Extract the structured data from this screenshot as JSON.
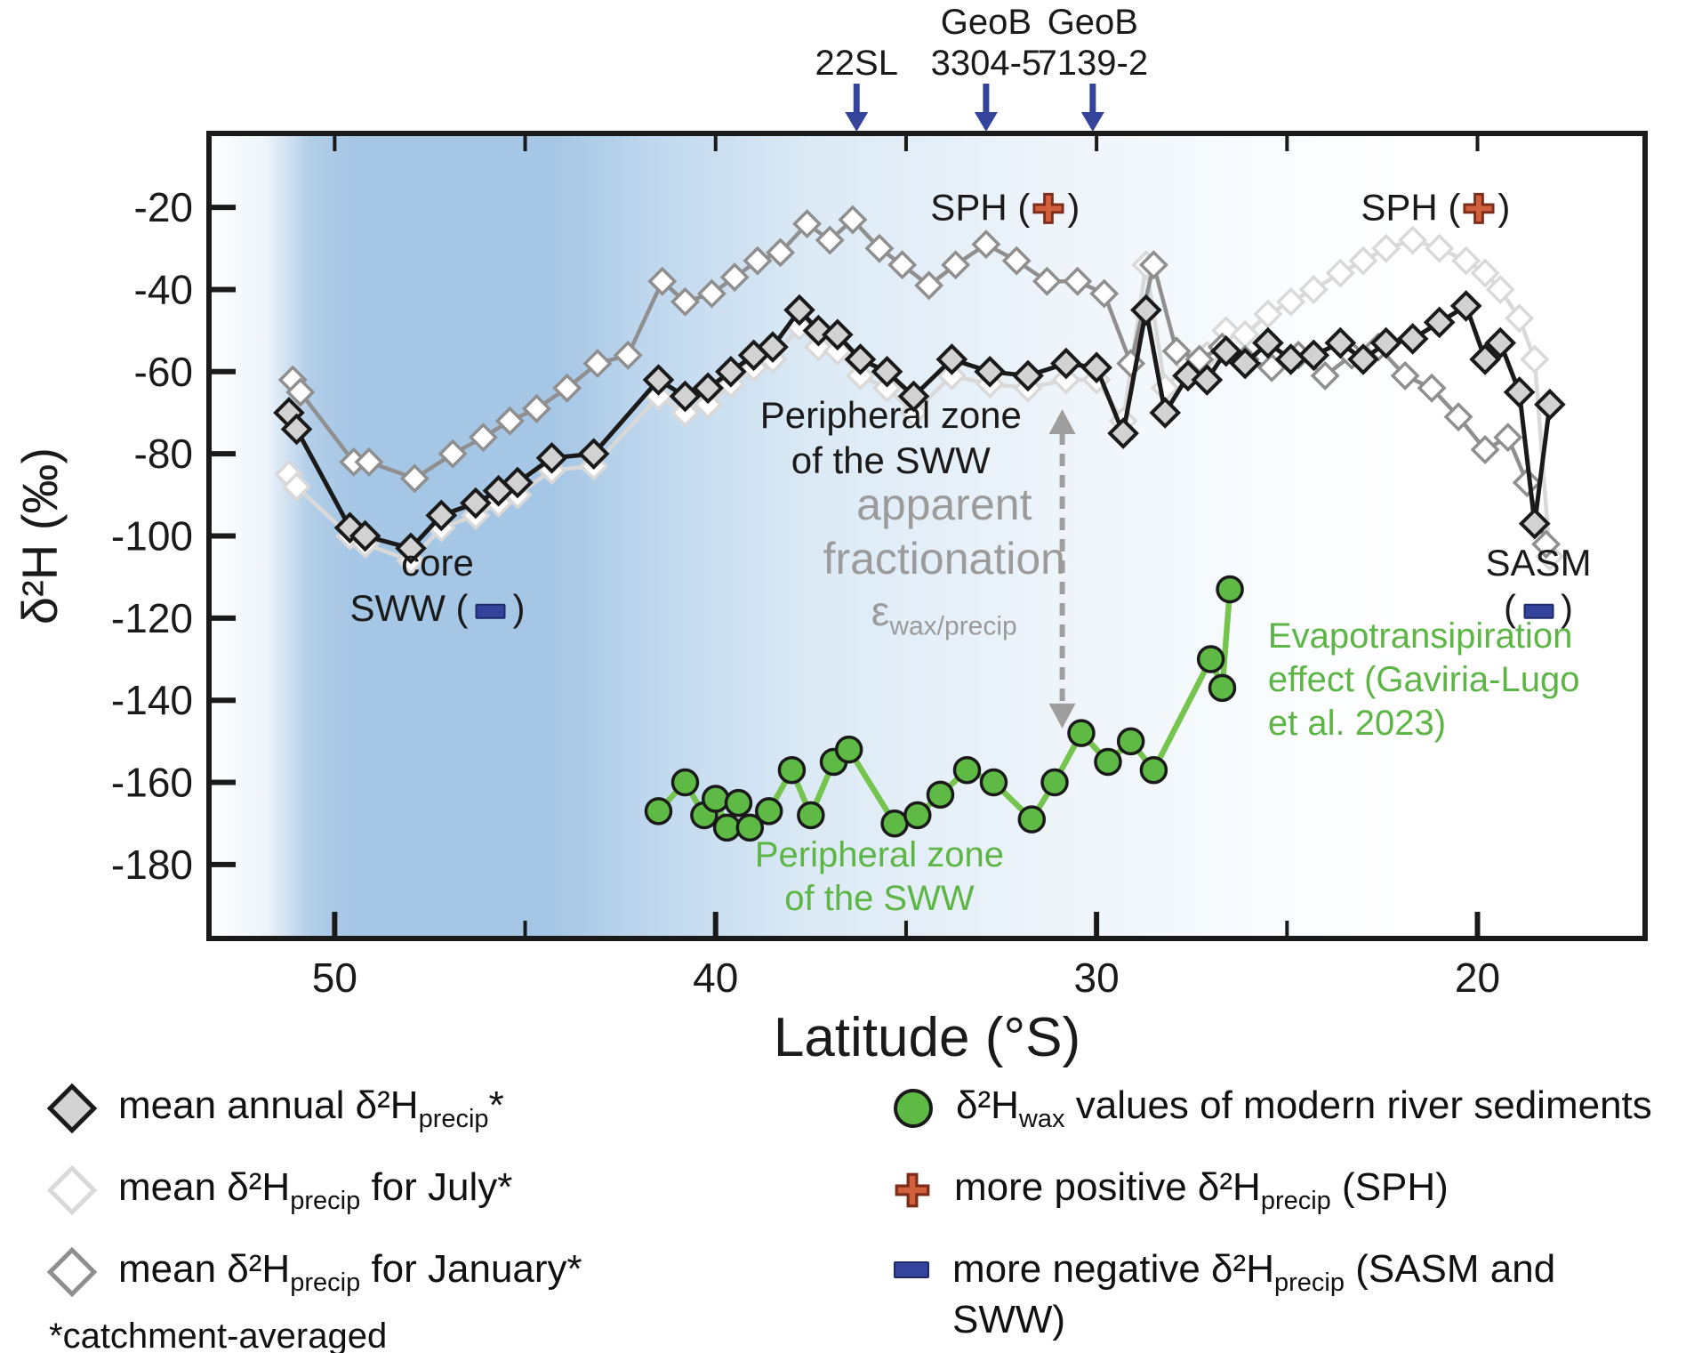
{
  "colors": {
    "annual_line": "#1a1a1a",
    "annual_fill": "#d2d2d2",
    "july_line": "#d9d9d9",
    "july_fill": "#ffffff",
    "january_line": "#8f8f8f",
    "january_fill": "#ffffff",
    "wax_line": "#74c44d",
    "wax_fill": "#5fba45",
    "marker_outline": "#1a1a1a",
    "navy": "#34439b",
    "cross_fill": "#d2603c",
    "cross_stroke": "#7d2d1a",
    "dash_gray": "#9e9e9e",
    "band_blue": "#a5c6e5",
    "axis": "#1a1a1a",
    "gray_text": "#9b9b9b",
    "green_text": "#5cb544"
  },
  "chart_data": {
    "type": "line",
    "x_axis": {
      "label": "Latitude (°S)",
      "ticks": [
        50,
        40,
        30,
        20
      ],
      "minor_ticks": [
        45,
        35,
        25
      ],
      "range": [
        53.3,
        15.6
      ],
      "reversed": true
    },
    "y_axis": {
      "label": "δ²H (‰)",
      "ticks": [
        -20,
        -40,
        -60,
        -80,
        -100,
        -120,
        -140,
        -160,
        -180
      ],
      "range": [
        -198,
        -2
      ],
      "grid": false
    },
    "background_gradient": [
      {
        "offset": "0%",
        "color": "#ffffff"
      },
      {
        "offset": "4%",
        "color": "#edf4fa"
      },
      {
        "offset": "7%",
        "color": "#b2cee8"
      },
      {
        "offset": "10%",
        "color": "#a5c6e5"
      },
      {
        "offset": "24%",
        "color": "#a5c6e5"
      },
      {
        "offset": "31%",
        "color": "#c0d8ee"
      },
      {
        "offset": "42%",
        "color": "#dceaf5"
      },
      {
        "offset": "54%",
        "color": "#e9f1f9"
      },
      {
        "offset": "66%",
        "color": "#f3f8fc"
      },
      {
        "offset": "76%",
        "color": "#fbfdff"
      },
      {
        "offset": "83%",
        "color": "#ffffff"
      },
      {
        "offset": "100%",
        "color": "#ffffff"
      }
    ],
    "series": [
      {
        "id": "july",
        "name": "mean δ²H precip for July (catchment-averaged)",
        "marker": "diamond",
        "points": [
          [
            51.2,
            -85
          ],
          [
            51.0,
            -88
          ],
          [
            49.6,
            -100
          ],
          [
            49.2,
            -102
          ],
          [
            48.0,
            -106
          ],
          [
            47.2,
            -98
          ],
          [
            46.3,
            -95
          ],
          [
            45.7,
            -92
          ],
          [
            45.2,
            -90
          ],
          [
            44.3,
            -84
          ],
          [
            43.2,
            -83
          ],
          [
            41.5,
            -66
          ],
          [
            40.8,
            -70
          ],
          [
            40.2,
            -68
          ],
          [
            39.6,
            -63
          ],
          [
            39.0,
            -59
          ],
          [
            38.5,
            -57
          ],
          [
            37.8,
            -49
          ],
          [
            37.3,
            -54
          ],
          [
            36.8,
            -55
          ],
          [
            36.2,
            -61
          ],
          [
            35.5,
            -64
          ],
          [
            34.8,
            -70
          ],
          [
            33.8,
            -61
          ],
          [
            32.8,
            -63
          ],
          [
            31.8,
            -64
          ],
          [
            30.8,
            -62
          ],
          [
            30.0,
            -62
          ],
          [
            29.3,
            -72
          ],
          [
            28.7,
            -34
          ],
          [
            28.2,
            -64
          ],
          [
            27.6,
            -58
          ],
          [
            27.1,
            -56
          ],
          [
            26.6,
            -50
          ],
          [
            26.1,
            -51
          ],
          [
            25.5,
            -46
          ],
          [
            24.9,
            -43
          ],
          [
            24.3,
            -40
          ],
          [
            23.6,
            -36
          ],
          [
            23.0,
            -33
          ],
          [
            22.4,
            -30
          ],
          [
            21.7,
            -28
          ],
          [
            21.0,
            -30
          ],
          [
            20.3,
            -33
          ],
          [
            19.8,
            -36
          ],
          [
            19.4,
            -40
          ],
          [
            18.9,
            -47
          ],
          [
            18.5,
            -57
          ],
          [
            18.1,
            -105
          ]
        ]
      },
      {
        "id": "january",
        "name": "mean δ²H precip for January (catchment-averaged)",
        "marker": "diamond",
        "points": [
          [
            51.1,
            -62
          ],
          [
            50.9,
            -65
          ],
          [
            49.5,
            -82
          ],
          [
            49.1,
            -82
          ],
          [
            47.9,
            -86
          ],
          [
            46.9,
            -80
          ],
          [
            46.1,
            -76
          ],
          [
            45.4,
            -72
          ],
          [
            44.7,
            -69
          ],
          [
            43.9,
            -64
          ],
          [
            43.1,
            -58
          ],
          [
            42.3,
            -56
          ],
          [
            41.4,
            -38
          ],
          [
            40.8,
            -43
          ],
          [
            40.1,
            -41
          ],
          [
            39.5,
            -37
          ],
          [
            38.9,
            -33
          ],
          [
            38.3,
            -31
          ],
          [
            37.6,
            -24
          ],
          [
            37.0,
            -28
          ],
          [
            36.4,
            -23
          ],
          [
            35.7,
            -30
          ],
          [
            35.1,
            -34
          ],
          [
            34.4,
            -39
          ],
          [
            33.7,
            -34
          ],
          [
            32.9,
            -29
          ],
          [
            32.1,
            -33
          ],
          [
            31.3,
            -38
          ],
          [
            30.5,
            -38
          ],
          [
            29.8,
            -41
          ],
          [
            29.1,
            -58
          ],
          [
            28.5,
            -34
          ],
          [
            27.9,
            -55
          ],
          [
            27.3,
            -57
          ],
          [
            26.7,
            -54
          ],
          [
            26.1,
            -57
          ],
          [
            25.4,
            -59
          ],
          [
            24.7,
            -56
          ],
          [
            24.0,
            -61
          ],
          [
            23.3,
            -56
          ],
          [
            22.6,
            -54
          ],
          [
            21.9,
            -61
          ],
          [
            21.2,
            -64
          ],
          [
            20.5,
            -71
          ],
          [
            19.8,
            -79
          ],
          [
            19.2,
            -76
          ],
          [
            18.7,
            -87
          ],
          [
            18.2,
            -102
          ]
        ]
      },
      {
        "id": "annual",
        "name": "mean annual δ²H precip (catchment-averaged)",
        "marker": "diamond",
        "points": [
          [
            51.2,
            -70
          ],
          [
            51.0,
            -74
          ],
          [
            49.6,
            -98
          ],
          [
            49.2,
            -100
          ],
          [
            48.0,
            -103
          ],
          [
            47.2,
            -95
          ],
          [
            46.3,
            -92
          ],
          [
            45.7,
            -89
          ],
          [
            45.2,
            -87
          ],
          [
            44.3,
            -81
          ],
          [
            43.2,
            -80
          ],
          [
            41.5,
            -62
          ],
          [
            40.8,
            -66
          ],
          [
            40.2,
            -64
          ],
          [
            39.6,
            -60
          ],
          [
            39.0,
            -56
          ],
          [
            38.5,
            -54
          ],
          [
            37.8,
            -45
          ],
          [
            37.3,
            -50
          ],
          [
            36.8,
            -51
          ],
          [
            36.2,
            -57
          ],
          [
            35.5,
            -60
          ],
          [
            34.8,
            -66
          ],
          [
            33.8,
            -57
          ],
          [
            32.8,
            -60
          ],
          [
            31.8,
            -61
          ],
          [
            30.8,
            -58
          ],
          [
            30.0,
            -59
          ],
          [
            29.3,
            -75
          ],
          [
            28.7,
            -45
          ],
          [
            28.2,
            -70
          ],
          [
            27.6,
            -61
          ],
          [
            27.1,
            -62
          ],
          [
            26.6,
            -55
          ],
          [
            26.1,
            -58
          ],
          [
            25.5,
            -53
          ],
          [
            24.9,
            -57
          ],
          [
            24.3,
            -56
          ],
          [
            23.6,
            -53
          ],
          [
            23.0,
            -57
          ],
          [
            22.4,
            -53
          ],
          [
            21.7,
            -52
          ],
          [
            21.0,
            -48
          ],
          [
            20.3,
            -44
          ],
          [
            19.8,
            -57
          ],
          [
            19.4,
            -53
          ],
          [
            18.9,
            -65
          ],
          [
            18.5,
            -97
          ],
          [
            18.1,
            -68
          ]
        ]
      },
      {
        "id": "wax",
        "name": "δ²H wax values of modern river sediments",
        "marker": "circle",
        "points": [
          [
            41.5,
            -167
          ],
          [
            40.8,
            -160
          ],
          [
            40.3,
            -168
          ],
          [
            40.0,
            -164
          ],
          [
            39.7,
            -171
          ],
          [
            39.4,
            -165
          ],
          [
            39.1,
            -171
          ],
          [
            38.6,
            -167
          ],
          [
            38.0,
            -157
          ],
          [
            37.5,
            -168
          ],
          [
            36.9,
            -155
          ],
          [
            36.5,
            -152
          ],
          [
            35.3,
            -170
          ],
          [
            34.7,
            -168
          ],
          [
            34.1,
            -163
          ],
          [
            33.4,
            -157
          ],
          [
            32.7,
            -160
          ],
          [
            31.7,
            -169
          ],
          [
            31.1,
            -160
          ],
          [
            30.4,
            -148
          ],
          [
            29.7,
            -155
          ],
          [
            29.1,
            -150
          ],
          [
            28.5,
            -157
          ],
          [
            27.0,
            -130
          ],
          [
            26.7,
            -137
          ],
          [
            26.5,
            -113
          ]
        ]
      }
    ],
    "cores": [
      {
        "label_lines": [
          "22SL"
        ],
        "lat": 36.3
      },
      {
        "label_lines": [
          "GeoB",
          "3304-5"
        ],
        "lat": 32.9
      },
      {
        "label_lines": [
          "GeoB",
          "7139-2"
        ],
        "lat": 30.1
      }
    ],
    "fractionation_arrow": {
      "lat": 30.9,
      "from": -70,
      "to": -146
    },
    "labels": {
      "sph_left": {
        "text": "SPH (",
        "close": ")",
        "lat": 32.4,
        "value": -20
      },
      "sph_right": {
        "text": "SPH (",
        "close": ")",
        "lat": 21.1,
        "value": -20
      },
      "core_sww": {
        "line1": "core",
        "line2_pre": "SWW (",
        "line2_post": ")",
        "lat": 47.3,
        "value": -112
      },
      "peripheral_black": {
        "line1": "Peripheral zone",
        "line2": "of the SWW",
        "lat": 35.4,
        "value": -76
      },
      "apparent": {
        "line1": "apparent",
        "line2": "fractionation",
        "eps": "ε",
        "eps_sub": "wax/precip",
        "lat": 34.0,
        "value": -106
      },
      "sasm": {
        "line1": "SASM",
        "paren_open": "(",
        "paren_close": ")",
        "lat": 18.4,
        "value": -112
      },
      "evapo": {
        "line1": "Evapotransipiration",
        "line2": "effect (Gaviria-Lugo",
        "line3": "et al. 2023)",
        "lat": 25.5,
        "value": -135
      },
      "peripheral_green": {
        "line1": "Peripheral zone",
        "line2": "of the SWW",
        "lat": 35.7,
        "value": -183
      }
    }
  },
  "legend": {
    "annual": {
      "pre": "mean annual δ²H",
      "sub": "precip",
      "post": "*"
    },
    "july": {
      "pre": "mean δ²H",
      "sub": "precip",
      "post": " for July*"
    },
    "january": {
      "pre": "mean δ²H",
      "sub": "precip",
      "post": " for January*"
    },
    "footnote": "*catchment-averaged",
    "wax": {
      "pre": "δ²H",
      "sub": "wax",
      "post": " values of modern river sediments"
    },
    "positive": {
      "pre": "more positive δ²H",
      "sub": "precip",
      "post": " (SPH)"
    },
    "negative": {
      "pre": "more negative δ²H",
      "sub": "precip",
      "post": " (SASM and",
      "line2": "SWW)"
    }
  }
}
